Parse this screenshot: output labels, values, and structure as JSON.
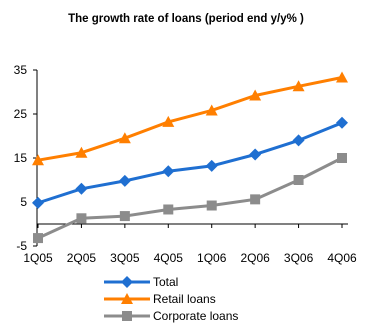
{
  "chart_data": {
    "type": "line",
    "title": "The growth rate of loans (period end y/y% )",
    "xlabel": "",
    "ylabel": "",
    "categories": [
      "1Q05",
      "2Q05",
      "3Q05",
      "4Q05",
      "1Q06",
      "2Q06",
      "3Q06",
      "4Q06"
    ],
    "yticks": [
      -5,
      5,
      15,
      25,
      35
    ],
    "ylim": [
      -5,
      35
    ],
    "grid": false,
    "legend": "bottom",
    "series": [
      {
        "name": "Total",
        "color": "#1f6fd1",
        "marker": "diamond",
        "values": [
          4.8,
          8.0,
          9.8,
          12.0,
          13.2,
          15.8,
          19.0,
          23.0
        ]
      },
      {
        "name": "Retail loans",
        "color": "#ff7f00",
        "marker": "triangle",
        "values": [
          14.5,
          16.2,
          19.5,
          23.2,
          25.8,
          29.2,
          31.3,
          33.3
        ]
      },
      {
        "name": "Corporate loans",
        "color": "#8c8c8c",
        "marker": "square",
        "values": [
          -3.2,
          1.3,
          1.8,
          3.3,
          4.2,
          5.6,
          10.0,
          15.0
        ]
      }
    ]
  }
}
